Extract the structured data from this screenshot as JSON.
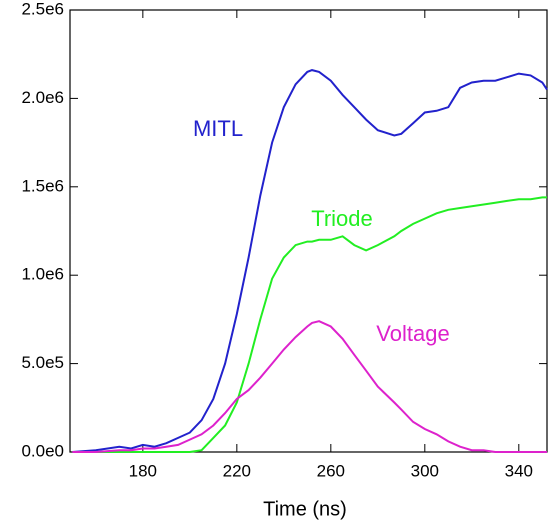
{
  "chart_data": {
    "type": "line",
    "x_label": "Time (ns)",
    "x": [
      150,
      160,
      170,
      175,
      180,
      185,
      190,
      195,
      200,
      205,
      210,
      215,
      220,
      225,
      230,
      235,
      240,
      245,
      250,
      252,
      255,
      260,
      265,
      270,
      275,
      280,
      287,
      290,
      295,
      300,
      305,
      310,
      315,
      320,
      325,
      330,
      335,
      340,
      345,
      350,
      352
    ],
    "series": [
      {
        "name": "MITL",
        "color": "#2222cc",
        "values": [
          0,
          10000,
          30000,
          20000,
          40000,
          30000,
          50000,
          80000,
          110000,
          180000,
          300000,
          500000,
          780000,
          1100000,
          1450000,
          1750000,
          1950000,
          2080000,
          2150000,
          2160000,
          2150000,
          2100000,
          2020000,
          1950000,
          1880000,
          1820000,
          1790000,
          1800000,
          1860000,
          1920000,
          1930000,
          1950000,
          2060000,
          2090000,
          2100000,
          2100000,
          2120000,
          2140000,
          2130000,
          2090000,
          2050000
        ]
      },
      {
        "name": "Triode",
        "color": "#22ee22",
        "values": [
          0,
          0,
          0,
          0,
          0,
          0,
          0,
          0,
          0,
          10000,
          80000,
          150000,
          280000,
          500000,
          750000,
          980000,
          1100000,
          1170000,
          1190000,
          1190000,
          1200000,
          1200000,
          1220000,
          1170000,
          1140000,
          1170000,
          1220000,
          1250000,
          1290000,
          1320000,
          1350000,
          1370000,
          1380000,
          1390000,
          1400000,
          1410000,
          1420000,
          1430000,
          1430000,
          1440000,
          1440000
        ]
      },
      {
        "name": "Voltage",
        "color": "#dd22cc",
        "values": [
          0,
          0,
          10000,
          10000,
          20000,
          20000,
          30000,
          40000,
          70000,
          100000,
          150000,
          220000,
          300000,
          350000,
          420000,
          500000,
          580000,
          650000,
          710000,
          730000,
          740000,
          710000,
          640000,
          550000,
          460000,
          370000,
          280000,
          240000,
          170000,
          130000,
          100000,
          60000,
          30000,
          10000,
          10000,
          0,
          0,
          0,
          0,
          0,
          0
        ]
      }
    ],
    "xlim": [
      149,
      352
    ],
    "xticks": [
      180,
      220,
      260,
      300,
      340
    ],
    "ylim": [
      0,
      2500000
    ],
    "yticks": [
      {
        "value": 0,
        "label": "0.0e0"
      },
      {
        "value": 500000,
        "label": "5.0e5"
      },
      {
        "value": 1000000,
        "label": "1.0e6"
      },
      {
        "value": 1500000,
        "label": "1.5e6"
      },
      {
        "value": 2000000,
        "label": "2.0e6"
      },
      {
        "value": 2500000,
        "label": "2.5e6"
      }
    ],
    "grid": false
  }
}
